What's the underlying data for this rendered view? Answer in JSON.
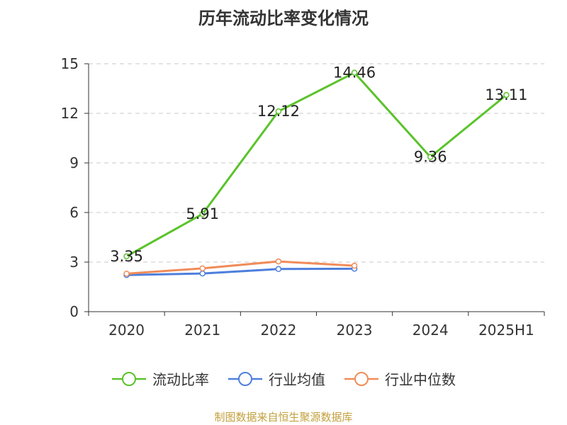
{
  "chart_data": {
    "type": "line",
    "title": "历年流动比率变化情况",
    "categories": [
      "2020",
      "2021",
      "2022",
      "2023",
      "2024",
      "2025H1"
    ],
    "ylim": [
      0,
      15
    ],
    "yticks": [
      0,
      3,
      6,
      9,
      12,
      15
    ],
    "grid": "horizontal-dashed",
    "legend_position": "bottom",
    "series": [
      {
        "name": "流动比率",
        "color": "#5ac32a",
        "values": [
          3.35,
          5.91,
          12.12,
          14.46,
          9.36,
          13.11
        ],
        "labels": [
          "3.35",
          "5.91",
          "12.12",
          "14.46",
          "9.36",
          "13.11"
        ]
      },
      {
        "name": "行业均值",
        "color": "#4e7fdc",
        "values": [
          2.22,
          2.31,
          2.58,
          2.6,
          null,
          null
        ]
      },
      {
        "name": "行业中位数",
        "color": "#f08c5a",
        "values": [
          2.3,
          2.62,
          3.04,
          2.78,
          null,
          null
        ]
      }
    ]
  },
  "source_note": "制图数据来自恒生聚源数据库"
}
